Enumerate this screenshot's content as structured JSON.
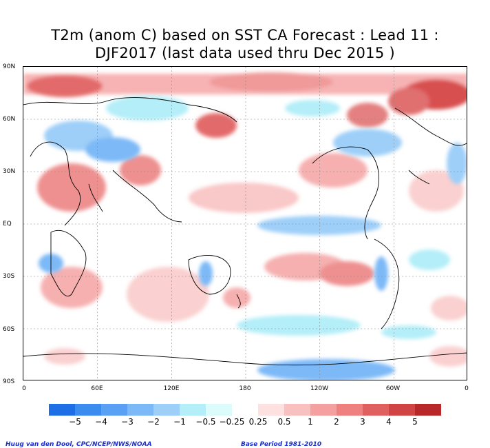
{
  "title": {
    "line1": "T2m (anom C) based on SST CA Forecast : Lead 11 :",
    "line2": "DJF2017 (last data used thru Dec 2015 )"
  },
  "axes": {
    "lat_labels": [
      "90N",
      "60N",
      "30N",
      "EQ",
      "30S",
      "60S",
      "90S"
    ],
    "lon_labels": [
      "0",
      "60E",
      "120E",
      "180",
      "120W",
      "60W",
      "0"
    ]
  },
  "colorbar": {
    "colors": [
      "#1e6ee6",
      "#3c8cf0",
      "#5aa0f5",
      "#7db9f7",
      "#9ecff8",
      "#b4eef8",
      "#dcfcfc",
      "#ffffff",
      "#fde0e0",
      "#f9c0c0",
      "#f5a0a0",
      "#ee8080",
      "#e06060",
      "#d04444",
      "#b82828"
    ],
    "labels": [
      "−5",
      "−4",
      "−3",
      "−2",
      "−1",
      "−0.5",
      "−0.25",
      "0.25",
      "0.5",
      "1",
      "2",
      "3",
      "4",
      "5"
    ]
  },
  "credits": {
    "left": "Huug van den Dool, CPC/NCEP/NWS/NOAA",
    "right": "Base Period 1981-2010"
  }
}
